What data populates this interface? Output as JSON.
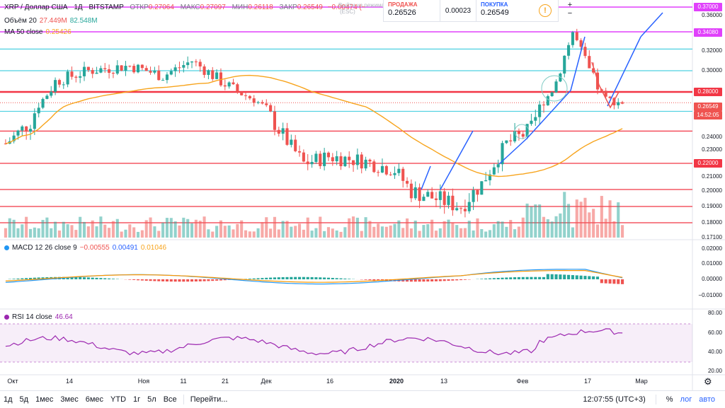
{
  "header": {
    "symbol": "XRP / Доллар США",
    "interval": "1Д",
    "exchange": "BITSTAMP",
    "open_label": "ОТКР",
    "open": "0.27064",
    "high_label": "МАКС",
    "high": "0.27097",
    "low_label": "МИН",
    "low": "0.26118",
    "close_label": "ЗАКР",
    "close": "0.26549",
    "change": "−0.00474 (−"
  },
  "ghost_text": {
    "line1": "Выйти из режима",
    "line2": "(ESC)"
  },
  "trade_panel": {
    "sell_label": "ПРОДАЖА",
    "sell_price": "0.26526",
    "spread": "0.00023",
    "buy_label": "ПОКУПКА",
    "buy_price": "0.26549",
    "info_icon": "!"
  },
  "zoom": {
    "plus": "+",
    "minus": "−"
  },
  "indicators": {
    "volume": {
      "name": "Объём 20",
      "v1": "27.449M",
      "v2": "82.548M"
    },
    "ma": {
      "name": "MA 50 close",
      "value": "0.25426"
    },
    "macd": {
      "name": "MACD 12 26 close 9",
      "v1": "−0.00555",
      "v2": "0.00491",
      "v3": "0.01046"
    },
    "rsi": {
      "name": "RSI 14 close",
      "value": "46.64"
    }
  },
  "price_axis": [
    "0.36000",
    "0.34000",
    "0.32000",
    "0.30000",
    "0.28000",
    "0.26000",
    "0.24000",
    "0.23000",
    "0.22000",
    "0.21000",
    "0.20000",
    "0.19000",
    "0.18000",
    "0.17100"
  ],
  "price_tags": [
    {
      "text": "0.37000",
      "color": "#e040fb"
    },
    {
      "text": "0.34080",
      "color": "#e040fb"
    },
    {
      "text": "0.28000",
      "color": "#f23645"
    },
    {
      "text": "0.26549",
      "color": "#ef5350"
    },
    {
      "text": "14:52:05",
      "color": "#ef5350"
    },
    {
      "text": "0.22000",
      "color": "#f23645"
    }
  ],
  "macd_axis": [
    "0.02000",
    "0.01000",
    "0.00000",
    "−0.01000"
  ],
  "rsi_axis": [
    "80.00",
    "60.00",
    "40.00",
    "20.00"
  ],
  "x_axis": [
    "Окт",
    "14",
    "Ноя",
    "11",
    "21",
    "Дек",
    "16",
    "2020",
    "13",
    "Фев",
    "17",
    "Мар"
  ],
  "bottom_bar": {
    "ranges": [
      "1д",
      "5д",
      "1мес",
      "3мес",
      "6мес",
      "YTD",
      "1г",
      "5л",
      "Все"
    ],
    "goto": "Перейти...",
    "time": "12:07:55 (UTC+3)",
    "percent": "%",
    "log": "лог",
    "auto": "авто"
  },
  "colors": {
    "up": "#26a69a",
    "down": "#ef5350",
    "ma": "#f7a41d",
    "macd_line": "#2196f3",
    "signal_line": "#ff9800",
    "resistance": "#f23645",
    "support_cyan": "#4dd0e1",
    "magenta": "#e040fb",
    "rsi": "#9c27b0",
    "arrow": "#2962ff"
  },
  "chart_data": {
    "type": "candlestick",
    "x_range": [
      "Окт",
      "Мар"
    ],
    "y_range": [
      0.171,
      0.37
    ],
    "ma_last": 0.25426,
    "last_close": 0.26549,
    "horizontal_levels": {
      "magenta": [
        0.37,
        0.3408
      ],
      "red": [
        0.28,
        0.244,
        0.22,
        0.201,
        0.19,
        0.18
      ],
      "cyan": [
        0.322,
        0.3,
        0.257
      ]
    },
    "macd_axis_range": [
      -0.015,
      0.022
    ],
    "rsi_axis_range": [
      20,
      80
    ],
    "volume_last": [
      "27.449M",
      "82.548M"
    ]
  }
}
